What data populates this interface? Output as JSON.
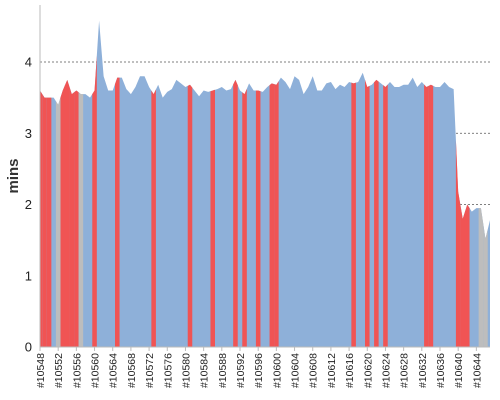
{
  "chart_data": {
    "type": "area",
    "ylabel": "mins",
    "ylim": [
      0,
      4.8
    ],
    "y_ticks": [
      0,
      1,
      2,
      3,
      4
    ],
    "grid": "horizontal-dashed",
    "x_range": [
      10548,
      10647
    ],
    "x_ticks": [
      "#10548",
      "#10552",
      "#10556",
      "#10560",
      "#10564",
      "#10568",
      "#10572",
      "#10576",
      "#10580",
      "#10584",
      "#10588",
      "#10592",
      "#10596",
      "#10600",
      "#10604",
      "#10608",
      "#10612",
      "#10616",
      "#10620",
      "#10624",
      "#10628",
      "#10632",
      "#10636",
      "#10640",
      "#10644"
    ],
    "colors": {
      "success": "#8eb0d9",
      "failure": "#f05454",
      "aborted": "#bdbdbd"
    },
    "x": [
      10548,
      10549,
      10550,
      10551,
      10552,
      10553,
      10554,
      10555,
      10556,
      10557,
      10558,
      10559,
      10560,
      10561,
      10562,
      10563,
      10564,
      10565,
      10566,
      10567,
      10568,
      10569,
      10570,
      10571,
      10572,
      10573,
      10574,
      10575,
      10576,
      10577,
      10578,
      10579,
      10580,
      10581,
      10582,
      10583,
      10584,
      10585,
      10586,
      10587,
      10588,
      10589,
      10590,
      10591,
      10592,
      10593,
      10594,
      10595,
      10596,
      10597,
      10598,
      10599,
      10600,
      10601,
      10602,
      10603,
      10604,
      10605,
      10606,
      10607,
      10608,
      10609,
      10610,
      10611,
      10612,
      10613,
      10614,
      10615,
      10616,
      10617,
      10618,
      10619,
      10620,
      10621,
      10622,
      10623,
      10624,
      10625,
      10626,
      10627,
      10628,
      10629,
      10630,
      10631,
      10632,
      10633,
      10634,
      10635,
      10636,
      10637,
      10638,
      10639,
      10640,
      10641,
      10642,
      10643,
      10644,
      10645,
      10646,
      10647
    ],
    "y": [
      3.6,
      3.5,
      3.5,
      3.5,
      3.4,
      3.6,
      3.75,
      3.55,
      3.6,
      3.55,
      3.55,
      3.5,
      3.6,
      4.58,
      3.8,
      3.6,
      3.6,
      3.78,
      3.78,
      3.62,
      3.55,
      3.65,
      3.8,
      3.8,
      3.65,
      3.55,
      3.68,
      3.5,
      3.58,
      3.62,
      3.75,
      3.7,
      3.65,
      3.68,
      3.6,
      3.52,
      3.6,
      3.58,
      3.6,
      3.62,
      3.65,
      3.6,
      3.62,
      3.75,
      3.6,
      3.55,
      3.7,
      3.6,
      3.6,
      3.58,
      3.65,
      3.7,
      3.68,
      3.78,
      3.72,
      3.62,
      3.8,
      3.75,
      3.55,
      3.65,
      3.8,
      3.6,
      3.6,
      3.7,
      3.72,
      3.62,
      3.68,
      3.65,
      3.72,
      3.7,
      3.72,
      3.85,
      3.65,
      3.68,
      3.75,
      3.7,
      3.65,
      3.72,
      3.65,
      3.65,
      3.68,
      3.68,
      3.78,
      3.65,
      3.72,
      3.65,
      3.68,
      3.65,
      3.65,
      3.72,
      3.65,
      3.62,
      2.18,
      1.8,
      2.0,
      1.9,
      1.95,
      1.95,
      1.52,
      1.78
    ],
    "failed": [
      10548,
      10549,
      10550,
      10553,
      10554,
      10555,
      10556,
      10560,
      10565,
      10573,
      10581,
      10586,
      10591,
      10593,
      10596,
      10599,
      10600,
      10617,
      10620,
      10622,
      10624,
      10633,
      10634,
      10640,
      10641,
      10642
    ],
    "aborted": [
      10552,
      10557,
      10645,
      10646
    ]
  }
}
